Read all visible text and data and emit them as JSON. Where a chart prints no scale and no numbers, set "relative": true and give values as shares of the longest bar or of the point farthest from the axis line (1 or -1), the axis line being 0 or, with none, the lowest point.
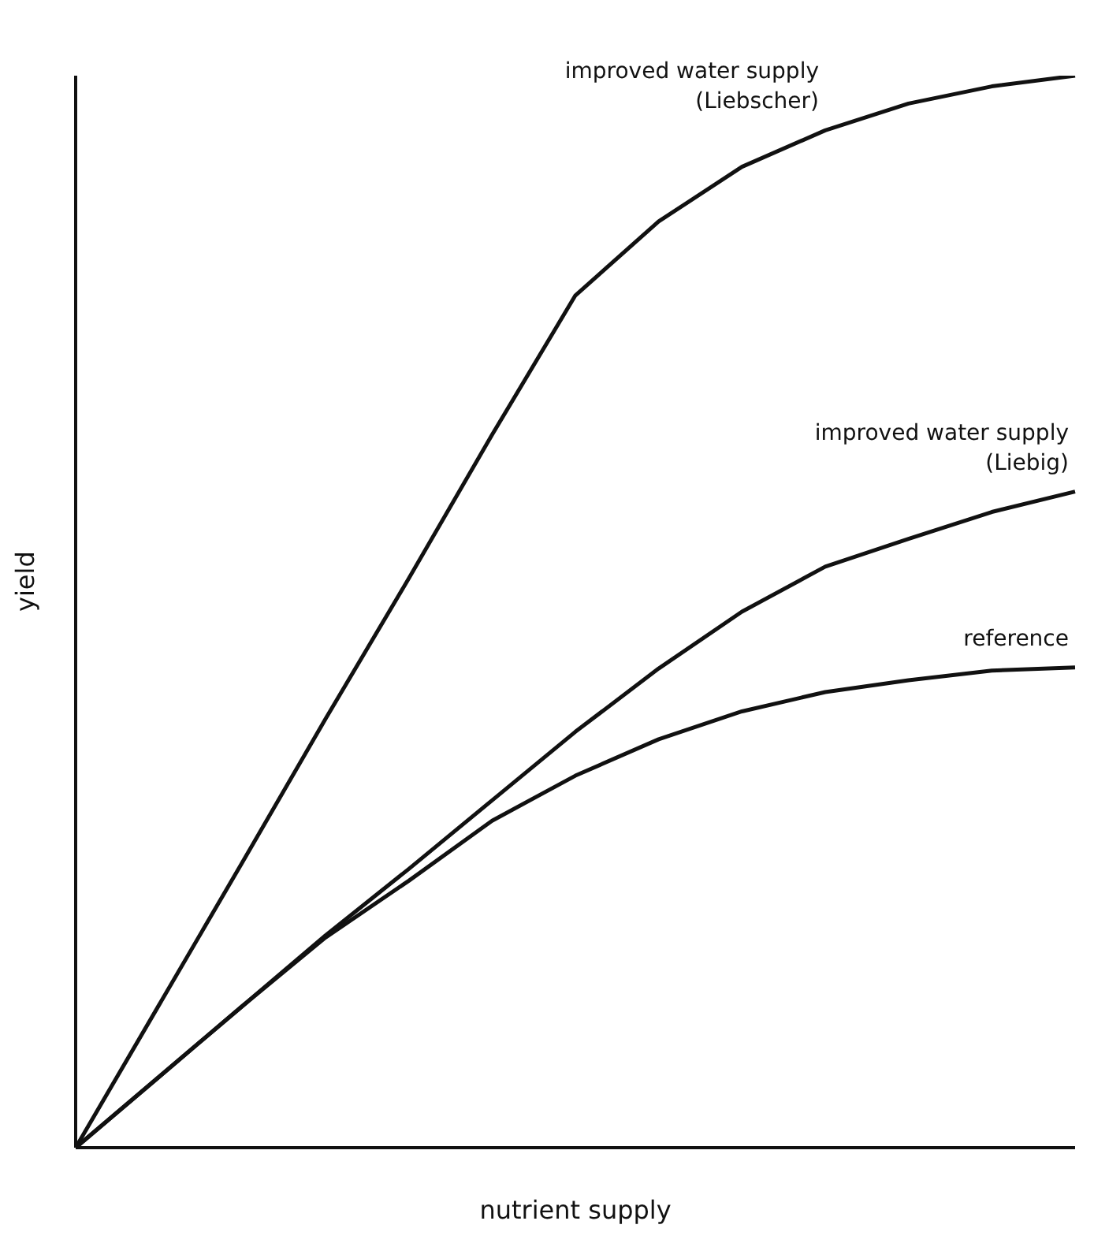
{
  "chart_data": {
    "type": "line",
    "relative": true,
    "xlabel": "nutrient supply",
    "ylabel": "yield",
    "marker": "none",
    "line_style": "solid",
    "grid": false,
    "legend": false,
    "categories": [
      null,
      null,
      null,
      null,
      null,
      null,
      null,
      null,
      null,
      null,
      null,
      null,
      null
    ],
    "series": [
      {
        "name": "improved water supply (Liebscher)",
        "color": "#111111",
        "values": [
          0,
          0.133,
          0.266,
          0.4,
          0.531,
          0.665,
          0.795,
          0.864,
          0.915,
          0.949,
          0.974,
          0.99,
          1
        ]
      },
      {
        "name": "improved water supply (Liebig)",
        "color": "#111111",
        "values": [
          0,
          0.066,
          0.132,
          0.198,
          0.26,
          0.324,
          0.388,
          0.447,
          0.5,
          0.542,
          0.568,
          0.593,
          0.612
        ]
      },
      {
        "name": "reference",
        "color": "#111111",
        "values": [
          0,
          0.066,
          0.132,
          0.196,
          0.249,
          0.305,
          0.347,
          0.381,
          0.407,
          0.425,
          0.436,
          0.445,
          0.448
        ]
      }
    ]
  }
}
